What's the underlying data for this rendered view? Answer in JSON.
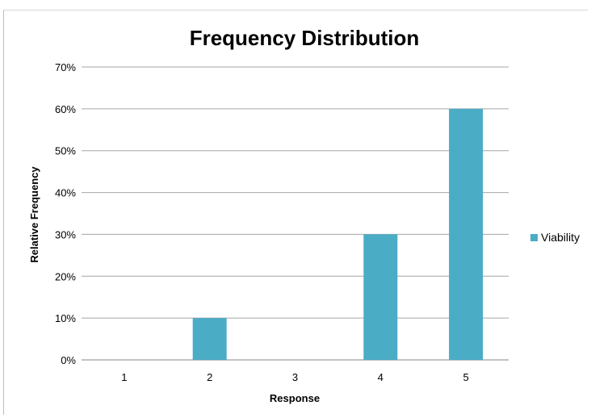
{
  "chart_data": {
    "type": "bar",
    "title": "Frequency Distribution",
    "xlabel": "Response",
    "ylabel": "Relative Frequency",
    "categories": [
      "1",
      "2",
      "3",
      "4",
      "5"
    ],
    "series": [
      {
        "name": "Viability",
        "values": [
          0,
          0.1,
          0,
          0.3,
          0.6
        ],
        "color": "#4bacc6"
      }
    ],
    "ylim": [
      0,
      0.7
    ],
    "yticks": [
      "0%",
      "10%",
      "20%",
      "30%",
      "40%",
      "50%",
      "60%",
      "70%"
    ],
    "grid": true,
    "legend_position": "right"
  }
}
